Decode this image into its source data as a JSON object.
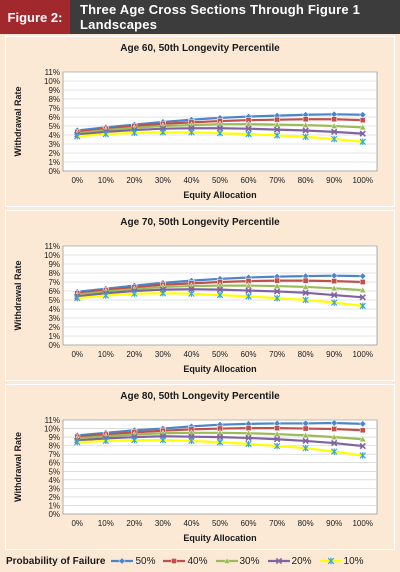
{
  "header": {
    "figure_label": "Figure 2:",
    "title": "Three Age Cross Sections Through Figure 1 Landscapes"
  },
  "legend": {
    "title": "Probability of Failure"
  },
  "colors": {
    "header_label_bg": "#a1282d",
    "header_title_bg": "#3c3c3c",
    "page_bg": "#fbe9d6",
    "plot_bg": "#ffffff"
  },
  "chart_data": [
    {
      "type": "line",
      "title": "Age 60, 50th Longevity Percentile",
      "xlabel": "Equity Allocation",
      "ylabel": "Withdrawal Rate",
      "categories": [
        "0%",
        "10%",
        "20%",
        "30%",
        "40%",
        "50%",
        "60%",
        "70%",
        "80%",
        "90%",
        "100%"
      ],
      "yticks": [
        "0%",
        "1%",
        "2%",
        "3%",
        "4%",
        "5%",
        "6%",
        "7%",
        "8%",
        "9%",
        "10%",
        "11%"
      ],
      "ylim": [
        0,
        11
      ],
      "grid": "horizontal",
      "series": [
        {
          "name": "50%",
          "color": "#4a86c8",
          "marker": "diamond",
          "values": [
            4.5,
            4.85,
            5.15,
            5.45,
            5.7,
            5.9,
            6.05,
            6.15,
            6.25,
            6.3,
            6.25
          ]
        },
        {
          "name": "40%",
          "color": "#c0504d",
          "marker": "square",
          "values": [
            4.35,
            4.7,
            5.0,
            5.25,
            5.4,
            5.55,
            5.65,
            5.7,
            5.75,
            5.75,
            5.65
          ]
        },
        {
          "name": "30%",
          "color": "#9bbb59",
          "marker": "triangle",
          "values": [
            4.2,
            4.55,
            4.8,
            5.0,
            5.1,
            5.2,
            5.2,
            5.15,
            5.1,
            5.0,
            4.85
          ]
        },
        {
          "name": "20%",
          "color": "#8064a2",
          "marker": "x",
          "values": [
            4.05,
            4.35,
            4.55,
            4.7,
            4.75,
            4.75,
            4.7,
            4.6,
            4.5,
            4.35,
            4.15
          ]
        },
        {
          "name": "10%",
          "color": "#ffff00",
          "marker": "star",
          "values": [
            3.85,
            4.1,
            4.25,
            4.3,
            4.3,
            4.2,
            4.1,
            3.95,
            3.8,
            3.55,
            3.25
          ]
        }
      ]
    },
    {
      "type": "line",
      "title": "Age 70, 50th Longevity Percentile",
      "xlabel": "Equity Allocation",
      "ylabel": "Withdrawal Rate",
      "categories": [
        "0%",
        "10%",
        "20%",
        "30%",
        "40%",
        "50%",
        "60%",
        "70%",
        "80%",
        "90%",
        "100%"
      ],
      "yticks": [
        "0%",
        "1%",
        "2%",
        "3%",
        "4%",
        "5%",
        "6%",
        "7%",
        "8%",
        "9%",
        "10%",
        "11%"
      ],
      "ylim": [
        0,
        11
      ],
      "grid": "horizontal",
      "series": [
        {
          "name": "50%",
          "color": "#4a86c8",
          "marker": "diamond",
          "values": [
            5.9,
            6.25,
            6.6,
            6.9,
            7.15,
            7.35,
            7.5,
            7.6,
            7.65,
            7.7,
            7.65
          ]
        },
        {
          "name": "40%",
          "color": "#c0504d",
          "marker": "square",
          "values": [
            5.75,
            6.1,
            6.4,
            6.7,
            6.85,
            7.0,
            7.1,
            7.15,
            7.15,
            7.1,
            7.0
          ]
        },
        {
          "name": "30%",
          "color": "#9bbb59",
          "marker": "triangle",
          "values": [
            5.6,
            5.95,
            6.2,
            6.45,
            6.55,
            6.6,
            6.6,
            6.55,
            6.45,
            6.3,
            6.1
          ]
        },
        {
          "name": "20%",
          "color": "#8064a2",
          "marker": "x",
          "values": [
            5.4,
            5.75,
            6.0,
            6.15,
            6.2,
            6.15,
            6.05,
            5.95,
            5.8,
            5.55,
            5.3
          ]
        },
        {
          "name": "10%",
          "color": "#ffff00",
          "marker": "star",
          "values": [
            5.2,
            5.5,
            5.7,
            5.75,
            5.7,
            5.55,
            5.4,
            5.2,
            5.0,
            4.7,
            4.35
          ]
        }
      ]
    },
    {
      "type": "line",
      "title": "Age 80, 50th Longevity Percentile",
      "xlabel": "Equity Allocation",
      "ylabel": "Withdrawal Rate",
      "categories": [
        "0%",
        "10%",
        "20%",
        "30%",
        "40%",
        "50%",
        "60%",
        "70%",
        "80%",
        "90%",
        "100%"
      ],
      "yticks": [
        "0%",
        "1%",
        "2%",
        "3%",
        "4%",
        "5%",
        "6%",
        "7%",
        "8%",
        "9%",
        "10%",
        "11%"
      ],
      "ylim": [
        0,
        11
      ],
      "grid": "horizontal",
      "series": [
        {
          "name": "50%",
          "color": "#4a86c8",
          "marker": "diamond",
          "values": [
            9.2,
            9.5,
            9.8,
            10.0,
            10.25,
            10.45,
            10.55,
            10.6,
            10.6,
            10.65,
            10.55
          ]
        },
        {
          "name": "40%",
          "color": "#c0504d",
          "marker": "square",
          "values": [
            9.05,
            9.3,
            9.55,
            9.75,
            9.9,
            10.0,
            10.05,
            10.05,
            10.0,
            9.95,
            9.8
          ]
        },
        {
          "name": "30%",
          "color": "#9bbb59",
          "marker": "triangle",
          "values": [
            8.85,
            9.1,
            9.3,
            9.45,
            9.5,
            9.5,
            9.45,
            9.35,
            9.2,
            9.0,
            8.75
          ]
        },
        {
          "name": "20%",
          "color": "#8064a2",
          "marker": "x",
          "values": [
            8.6,
            8.85,
            9.0,
            9.1,
            9.05,
            9.0,
            8.9,
            8.75,
            8.55,
            8.3,
            7.95
          ]
        },
        {
          "name": "10%",
          "color": "#ffff00",
          "marker": "star",
          "values": [
            8.4,
            8.55,
            8.65,
            8.65,
            8.55,
            8.4,
            8.2,
            7.95,
            7.7,
            7.3,
            6.85
          ]
        }
      ]
    }
  ]
}
